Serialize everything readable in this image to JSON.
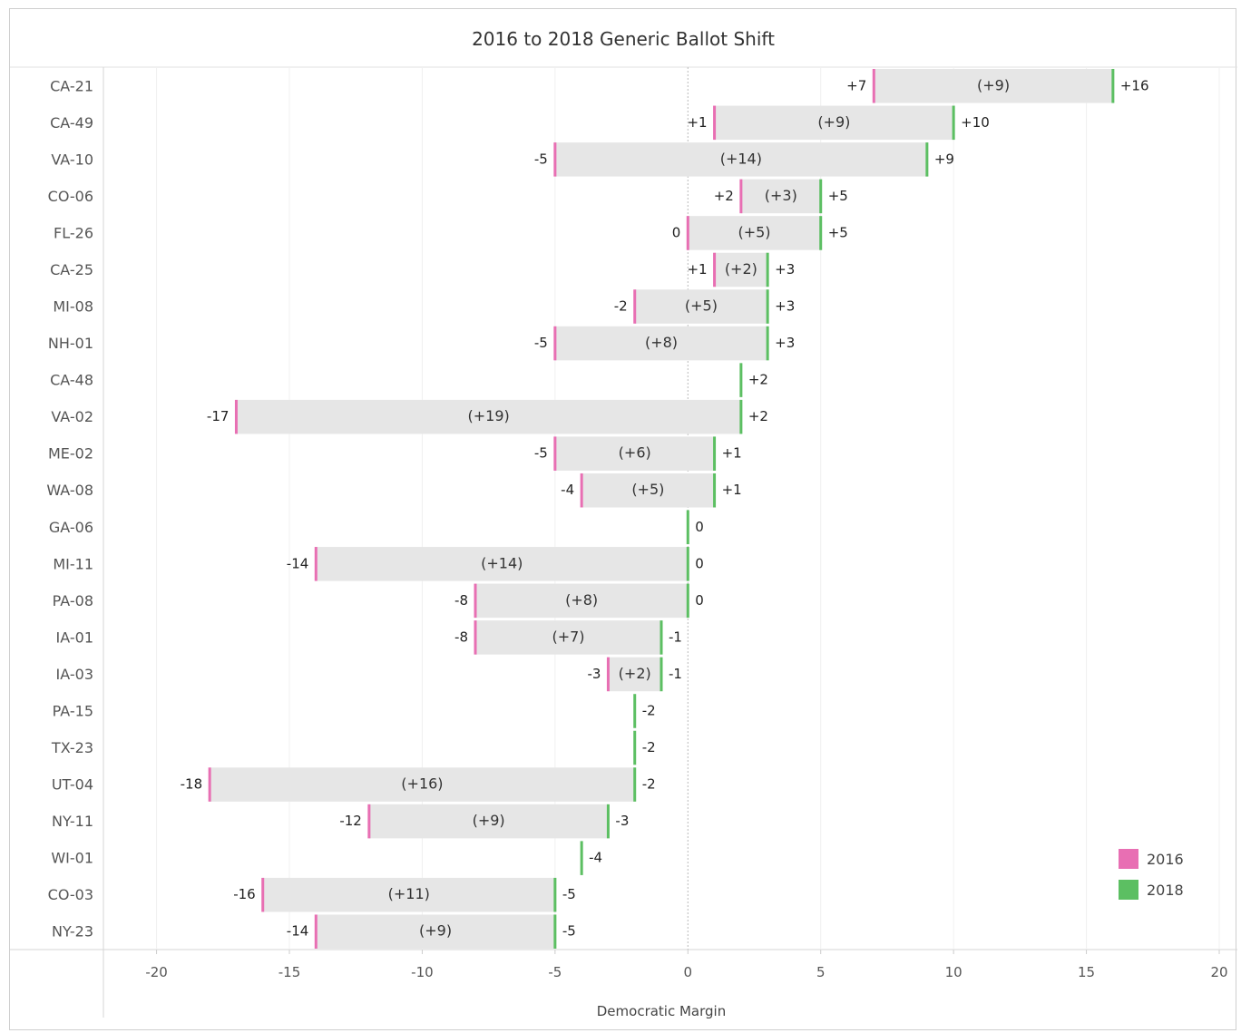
{
  "chart_data": {
    "type": "bar",
    "title": "2016 to 2018 Generic Ballot Shift",
    "xlabel": "Democratic Margin",
    "ylabel": "",
    "xlim": [
      -22,
      20
    ],
    "x_ticks": [
      -20,
      -15,
      -10,
      -5,
      0,
      5,
      10,
      15,
      20
    ],
    "legend": {
      "position": "bottom-right",
      "entries": [
        {
          "name": "2016",
          "color": "#e86fb3"
        },
        {
          "name": "2018",
          "color": "#5cbf62"
        }
      ]
    },
    "colors": {
      "bar": "#e6e6e6",
      "y2016": "#e86fb3",
      "y2018": "#5cbf62"
    },
    "rows": [
      {
        "district": "CA-21",
        "y2016": 7,
        "y2018": 16,
        "label2016": "+7",
        "label2018": "+16",
        "shift_label": "(+9)"
      },
      {
        "district": "CA-49",
        "y2016": 1,
        "y2018": 10,
        "label2016": "+1",
        "label2018": "+10",
        "shift_label": "(+9)"
      },
      {
        "district": "VA-10",
        "y2016": -5,
        "y2018": 9,
        "label2016": "-5",
        "label2018": "+9",
        "shift_label": "(+14)"
      },
      {
        "district": "CO-06",
        "y2016": 2,
        "y2018": 5,
        "label2016": "+2",
        "label2018": "+5",
        "shift_label": "(+3)"
      },
      {
        "district": "FL-26",
        "y2016": 0,
        "y2018": 5,
        "label2016": "0",
        "label2018": "+5",
        "shift_label": "(+5)"
      },
      {
        "district": "CA-25",
        "y2016": 1,
        "y2018": 3,
        "label2016": "+1",
        "label2018": "+3",
        "shift_label": "(+2)"
      },
      {
        "district": "MI-08",
        "y2016": -2,
        "y2018": 3,
        "label2016": "-2",
        "label2018": "+3",
        "shift_label": "(+5)"
      },
      {
        "district": "NH-01",
        "y2016": -5,
        "y2018": 3,
        "label2016": "-5",
        "label2018": "+3",
        "shift_label": "(+8)"
      },
      {
        "district": "CA-48",
        "y2016": null,
        "y2018": 2,
        "label2016": "",
        "label2018": "+2",
        "shift_label": ""
      },
      {
        "district": "VA-02",
        "y2016": -17,
        "y2018": 2,
        "label2016": "-17",
        "label2018": "+2",
        "shift_label": "(+19)"
      },
      {
        "district": "ME-02",
        "y2016": -5,
        "y2018": 1,
        "label2016": "-5",
        "label2018": "+1",
        "shift_label": "(+6)"
      },
      {
        "district": "WA-08",
        "y2016": -4,
        "y2018": 1,
        "label2016": "-4",
        "label2018": "+1",
        "shift_label": "(+5)"
      },
      {
        "district": "GA-06",
        "y2016": null,
        "y2018": 0,
        "label2016": "",
        "label2018": "0",
        "shift_label": ""
      },
      {
        "district": "MI-11",
        "y2016": -14,
        "y2018": 0,
        "label2016": "-14",
        "label2018": "0",
        "shift_label": "(+14)"
      },
      {
        "district": "PA-08",
        "y2016": -8,
        "y2018": 0,
        "label2016": "-8",
        "label2018": "0",
        "shift_label": "(+8)"
      },
      {
        "district": "IA-01",
        "y2016": -8,
        "y2018": -1,
        "label2016": "-8",
        "label2018": "-1",
        "shift_label": "(+7)"
      },
      {
        "district": "IA-03",
        "y2016": -3,
        "y2018": -1,
        "label2016": "-3",
        "label2018": "-1",
        "shift_label": "(+2)"
      },
      {
        "district": "PA-15",
        "y2016": null,
        "y2018": -2,
        "label2016": "",
        "label2018": "-2",
        "shift_label": ""
      },
      {
        "district": "TX-23",
        "y2016": null,
        "y2018": -2,
        "label2016": "",
        "label2018": "-2",
        "shift_label": ""
      },
      {
        "district": "UT-04",
        "y2016": -18,
        "y2018": -2,
        "label2016": "-18",
        "label2018": "-2",
        "shift_label": "(+16)"
      },
      {
        "district": "NY-11",
        "y2016": -12,
        "y2018": -3,
        "label2016": "-12",
        "label2018": "-3",
        "shift_label": "(+9)"
      },
      {
        "district": "WI-01",
        "y2016": null,
        "y2018": -4,
        "label2016": "",
        "label2018": "-4",
        "shift_label": ""
      },
      {
        "district": "CO-03",
        "y2016": -16,
        "y2018": -5,
        "label2016": "-16",
        "label2018": "-5",
        "shift_label": "(+11)"
      },
      {
        "district": "NY-23",
        "y2016": -14,
        "y2018": -5,
        "label2016": "-14",
        "label2018": "-5",
        "shift_label": "(+9)"
      }
    ]
  }
}
